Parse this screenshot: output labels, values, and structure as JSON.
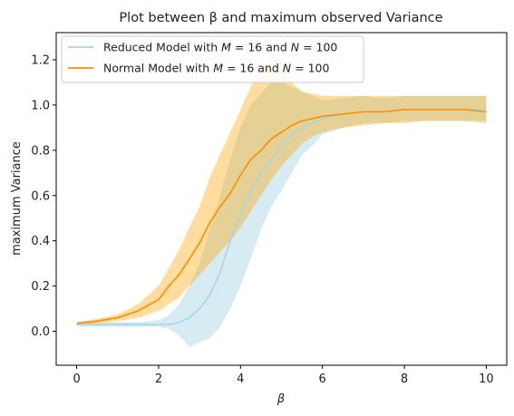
{
  "chart_data": {
    "type": "line",
    "title": "Plot between β and maximum observed Variance",
    "xlabel": "β",
    "ylabel": "maximum Variance",
    "xlim": [
      -0.5,
      10.5
    ],
    "ylim": [
      -0.15,
      1.32
    ],
    "xticks": [
      0,
      2,
      4,
      6,
      8,
      10
    ],
    "yticks": [
      0.0,
      0.2,
      0.4,
      0.6,
      0.8,
      1.0,
      1.2
    ],
    "xtick_labels": [
      "0",
      "2",
      "4",
      "6",
      "8",
      "10"
    ],
    "ytick_labels": [
      "0.0",
      "0.2",
      "0.4",
      "0.6",
      "0.8",
      "1.0",
      "1.2"
    ],
    "grid": false,
    "legend_position": "top-left",
    "series": [
      {
        "name": "Reduced Model with M = 16 and N = 100",
        "legend_label": {
          "pre": "Reduced Model with ",
          "m_var": "M",
          "m_val": " = 16 and ",
          "n_var": "N",
          "n_val": " = 100"
        },
        "color": "#a6d6e6",
        "band_color": "#add8e6",
        "x": [
          0,
          0.5,
          1,
          1.5,
          2,
          2.25,
          2.5,
          2.75,
          3,
          3.25,
          3.5,
          3.75,
          4,
          4.25,
          4.5,
          4.75,
          5,
          5.25,
          5.5,
          5.75,
          6,
          6.5,
          7,
          7.5,
          8,
          8.5,
          9,
          9.5,
          10
        ],
        "values": [
          0.03,
          0.03,
          0.03,
          0.03,
          0.03,
          0.03,
          0.04,
          0.06,
          0.1,
          0.16,
          0.26,
          0.4,
          0.52,
          0.62,
          0.7,
          0.76,
          0.82,
          0.87,
          0.9,
          0.92,
          0.94,
          0.96,
          0.97,
          0.97,
          0.98,
          0.98,
          0.98,
          0.98,
          0.98
        ],
        "lower": [
          0.02,
          0.02,
          0.02,
          0.02,
          0.02,
          0.01,
          -0.02,
          -0.07,
          -0.05,
          -0.03,
          0.02,
          0.1,
          0.2,
          0.32,
          0.45,
          0.55,
          0.62,
          0.7,
          0.78,
          0.82,
          0.87,
          0.9,
          0.92,
          0.92,
          0.93,
          0.93,
          0.93,
          0.93,
          0.93
        ],
        "upper": [
          0.04,
          0.04,
          0.04,
          0.04,
          0.05,
          0.07,
          0.12,
          0.2,
          0.3,
          0.45,
          0.6,
          0.76,
          0.9,
          1.0,
          1.05,
          1.1,
          1.1,
          1.08,
          1.06,
          1.04,
          1.02,
          1.03,
          1.04,
          1.03,
          1.04,
          1.04,
          1.04,
          1.04,
          1.04
        ]
      },
      {
        "name": "Normal Model with M = 16 and N = 100",
        "legend_label": {
          "pre": "Normal Model with ",
          "m_var": "M",
          "m_val": " = 16 and ",
          "n_var": "N",
          "n_val": " = 100"
        },
        "color": "#ff8c00",
        "band_color": "#ffa500",
        "x": [
          0,
          0.5,
          1,
          1.5,
          2,
          2.25,
          2.5,
          2.75,
          3,
          3.25,
          3.5,
          3.75,
          4,
          4.25,
          4.5,
          4.75,
          5,
          5.25,
          5.5,
          5.75,
          6,
          6.5,
          7,
          7.5,
          8,
          8.5,
          9,
          9.5,
          10
        ],
        "values": [
          0.035,
          0.045,
          0.06,
          0.09,
          0.14,
          0.2,
          0.25,
          0.32,
          0.39,
          0.48,
          0.55,
          0.61,
          0.69,
          0.76,
          0.8,
          0.85,
          0.88,
          0.91,
          0.93,
          0.94,
          0.95,
          0.96,
          0.97,
          0.97,
          0.98,
          0.98,
          0.98,
          0.98,
          0.97
        ],
        "lower": [
          0.03,
          0.035,
          0.045,
          0.06,
          0.09,
          0.12,
          0.15,
          0.2,
          0.25,
          0.3,
          0.35,
          0.4,
          0.46,
          0.53,
          0.6,
          0.67,
          0.73,
          0.78,
          0.83,
          0.86,
          0.88,
          0.9,
          0.91,
          0.92,
          0.92,
          0.93,
          0.93,
          0.93,
          0.92
        ],
        "upper": [
          0.04,
          0.055,
          0.075,
          0.12,
          0.2,
          0.28,
          0.36,
          0.46,
          0.55,
          0.68,
          0.78,
          0.88,
          0.98,
          1.08,
          1.16,
          1.22,
          1.18,
          1.1,
          1.06,
          1.05,
          1.04,
          1.04,
          1.04,
          1.04,
          1.04,
          1.04,
          1.04,
          1.04,
          1.04
        ]
      }
    ]
  }
}
